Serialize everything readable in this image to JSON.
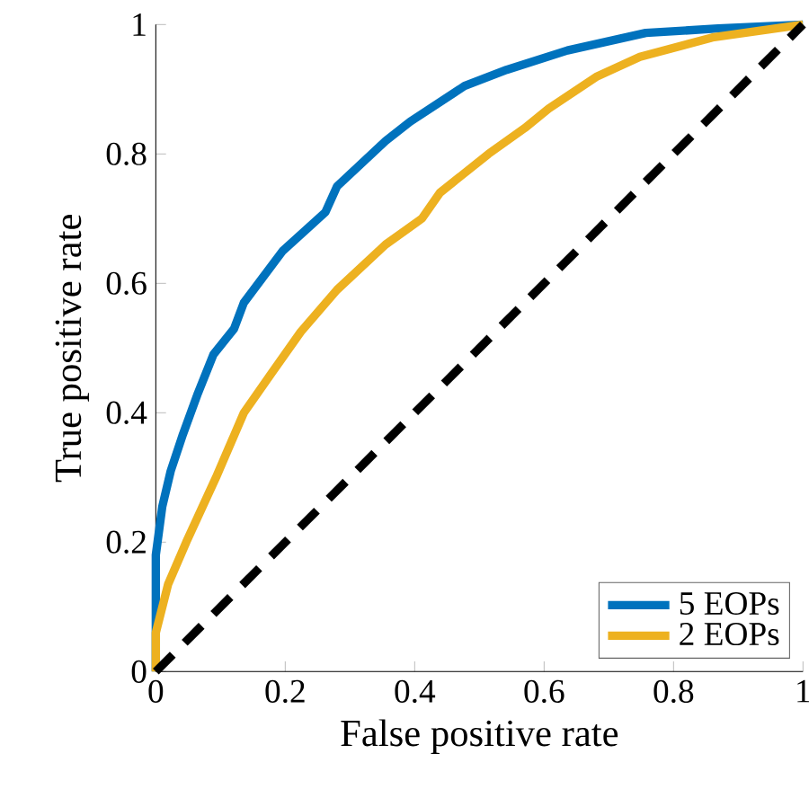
{
  "chart_data": {
    "type": "line",
    "xlabel": "False positive rate",
    "ylabel": "True positive rate",
    "xlim": [
      0,
      1
    ],
    "ylim": [
      0,
      1
    ],
    "xticks": [
      0,
      0.2,
      0.4,
      0.6,
      0.8,
      1
    ],
    "yticks": [
      0,
      0.2,
      0.4,
      0.6,
      0.8,
      1
    ],
    "legend": "bottom right",
    "grid": false,
    "series": [
      {
        "name": "5 EOPs",
        "color": "#0072bd",
        "x": [
          0,
          0,
          0.01,
          0.023,
          0.042,
          0.065,
          0.089,
          0.121,
          0.136,
          0.196,
          0.262,
          0.28,
          0.355,
          0.393,
          0.477,
          0.542,
          0.636,
          0.757,
          0.869,
          1
        ],
        "values": [
          0,
          0.18,
          0.255,
          0.31,
          0.367,
          0.43,
          0.49,
          0.53,
          0.57,
          0.65,
          0.71,
          0.75,
          0.82,
          0.85,
          0.905,
          0.93,
          0.96,
          0.987,
          0.994,
          1
        ]
      },
      {
        "name": "2 EOPs",
        "color": "#edb120",
        "x": [
          0,
          0,
          0.019,
          0.047,
          0.093,
          0.136,
          0.178,
          0.224,
          0.28,
          0.355,
          0.411,
          0.439,
          0.514,
          0.57,
          0.607,
          0.682,
          0.748,
          0.86,
          1
        ],
        "values": [
          0,
          0.06,
          0.135,
          0.2,
          0.3,
          0.4,
          0.46,
          0.525,
          0.59,
          0.66,
          0.7,
          0.74,
          0.8,
          0.84,
          0.87,
          0.92,
          0.95,
          0.98,
          1
        ]
      },
      {
        "color": "#000000",
        "line_style": "dashed",
        "x": [
          0,
          1
        ],
        "values": [
          0,
          1
        ]
      }
    ]
  }
}
